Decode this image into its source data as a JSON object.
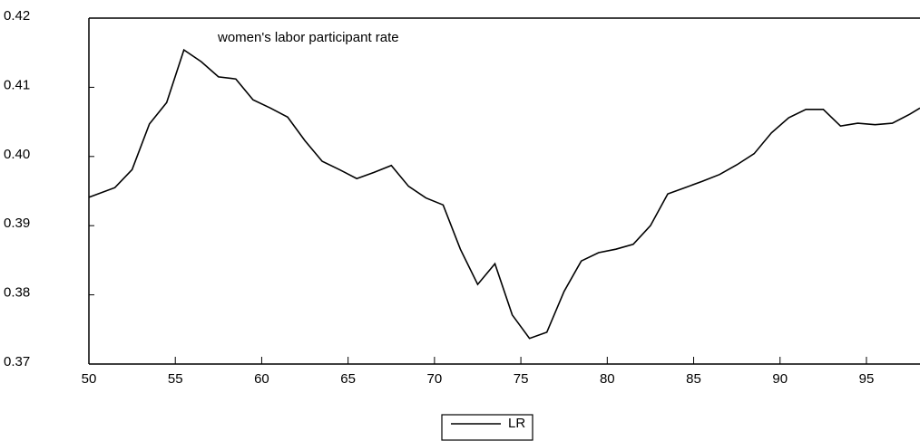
{
  "chart_data": {
    "type": "line",
    "title": "women's labor participant rate",
    "x": [
      50,
      51.5,
      52.5,
      53.5,
      54.5,
      55.5,
      56.5,
      57.5,
      58.5,
      59.5,
      60.5,
      61.5,
      62.5,
      63.5,
      64.5,
      65.5,
      66.5,
      67.5,
      68.5,
      69.5,
      70.5,
      71.5,
      72.5,
      73.5,
      74.5,
      75.5,
      76.5,
      77.5,
      78.5,
      79.5,
      80.5,
      81.5,
      82.5,
      83.5,
      84.5,
      85.5,
      86.5,
      87.5,
      88.5,
      89.5,
      90.5,
      91.5,
      92.5,
      93.5,
      94.5,
      95.5,
      96.5,
      97.5,
      98.1
    ],
    "series": [
      {
        "name": "LR",
        "color": "#000000",
        "values": [
          0.3941,
          0.3955,
          0.3981,
          0.4047,
          0.4078,
          0.4154,
          0.4137,
          0.4115,
          0.4112,
          0.4082,
          0.407,
          0.4057,
          0.4023,
          0.3993,
          0.3981,
          0.3968,
          0.3977,
          0.3987,
          0.3957,
          0.394,
          0.393,
          0.3866,
          0.3815,
          0.3845,
          0.3771,
          0.3737,
          0.3746,
          0.3805,
          0.3849,
          0.3861,
          0.3866,
          0.3873,
          0.39,
          0.3946,
          0.3955,
          0.3964,
          0.3974,
          0.3988,
          0.4004,
          0.4034,
          0.4056,
          0.4068,
          0.4068,
          0.4044,
          0.4048,
          0.4046,
          0.4048,
          0.4061,
          0.407
        ]
      }
    ],
    "xlim": [
      50,
      98.1
    ],
    "xticks": [
      50,
      55,
      60,
      65,
      70,
      75,
      80,
      85,
      90,
      95
    ],
    "ylim": [
      0.37,
      0.42
    ],
    "yticks": [
      0.37,
      0.38,
      0.39,
      {
        "value": 0.4,
        "label": "0.40"
      },
      0.41,
      0.42
    ],
    "grid": false
  }
}
